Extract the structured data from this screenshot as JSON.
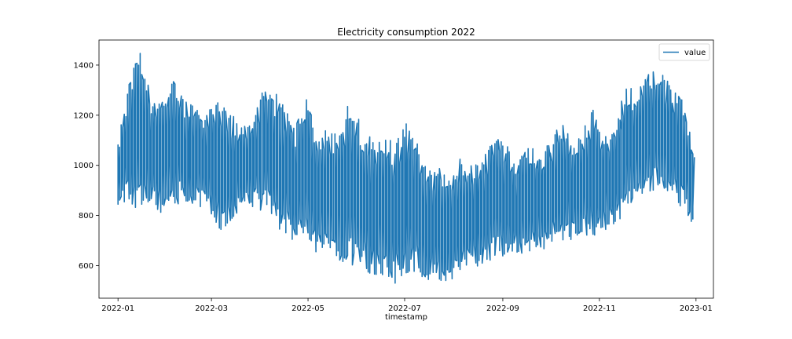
{
  "chart_data": {
    "type": "line",
    "title": "Electricity consumption 2022",
    "xlabel": "timestamp",
    "ylabel": "",
    "x_range": [
      "2021-12-20",
      "2023-01-12"
    ],
    "ylim": [
      470,
      1500
    ],
    "x_ticks": [
      {
        "value": "2022-01-01",
        "label": "2022-01"
      },
      {
        "value": "2022-03-01",
        "label": "2022-03"
      },
      {
        "value": "2022-05-01",
        "label": "2022-05"
      },
      {
        "value": "2022-07-01",
        "label": "2022-07"
      },
      {
        "value": "2022-09-01",
        "label": "2022-09"
      },
      {
        "value": "2022-11-01",
        "label": "2022-11"
      },
      {
        "value": "2023-01-01",
        "label": "2023-01"
      }
    ],
    "y_ticks": [
      600,
      800,
      1000,
      1200,
      1400
    ],
    "grid": false,
    "legend": {
      "position": "top-right",
      "entries": [
        "value"
      ]
    },
    "series": [
      {
        "name": "value",
        "color": "#1f77b4",
        "x": [
          "2022-01-01",
          "2022-01-08",
          "2022-01-15",
          "2022-01-22",
          "2022-01-29",
          "2022-02-05",
          "2022-02-12",
          "2022-02-19",
          "2022-02-26",
          "2022-03-05",
          "2022-03-12",
          "2022-03-19",
          "2022-03-26",
          "2022-04-02",
          "2022-04-09",
          "2022-04-16",
          "2022-04-23",
          "2022-04-30",
          "2022-05-07",
          "2022-05-14",
          "2022-05-21",
          "2022-05-28",
          "2022-06-04",
          "2022-06-11",
          "2022-06-18",
          "2022-06-25",
          "2022-07-02",
          "2022-07-09",
          "2022-07-16",
          "2022-07-23",
          "2022-07-30",
          "2022-08-06",
          "2022-08-13",
          "2022-08-20",
          "2022-08-27",
          "2022-09-03",
          "2022-09-10",
          "2022-09-17",
          "2022-09-24",
          "2022-10-01",
          "2022-10-08",
          "2022-10-15",
          "2022-10-22",
          "2022-10-29",
          "2022-11-05",
          "2022-11-12",
          "2022-11-19",
          "2022-11-26",
          "2022-12-03",
          "2022-12-10",
          "2022-12-17",
          "2022-12-24",
          "2022-12-31"
        ],
        "max": [
          1080,
          1310,
          1460,
          1300,
          1280,
          1370,
          1270,
          1240,
          1200,
          1270,
          1220,
          1170,
          1160,
          1310,
          1310,
          1250,
          1150,
          1270,
          1150,
          1140,
          1120,
          1290,
          1200,
          1090,
          1140,
          1080,
          1180,
          1100,
          980,
          1000,
          930,
          1050,
          1000,
          1040,
          1120,
          1100,
          1000,
          1100,
          1030,
          1090,
          1180,
          1110,
          1150,
          1250,
          1110,
          1180,
          1320,
          1300,
          1370,
          1380,
          1310,
          1260,
          1090
        ],
        "min": [
          840,
          860,
          800,
          820,
          810,
          840,
          850,
          840,
          820,
          740,
          720,
          830,
          840,
          800,
          780,
          730,
          690,
          680,
          650,
          640,
          620,
          600,
          590,
          560,
          560,
          520,
          560,
          570,
          540,
          540,
          530,
          560,
          600,
          590,
          620,
          630,
          640,
          650,
          660,
          670,
          680,
          700,
          720,
          720,
          740,
          760,
          820,
          870,
          890,
          920,
          880,
          820,
          760
        ]
      }
    ]
  }
}
